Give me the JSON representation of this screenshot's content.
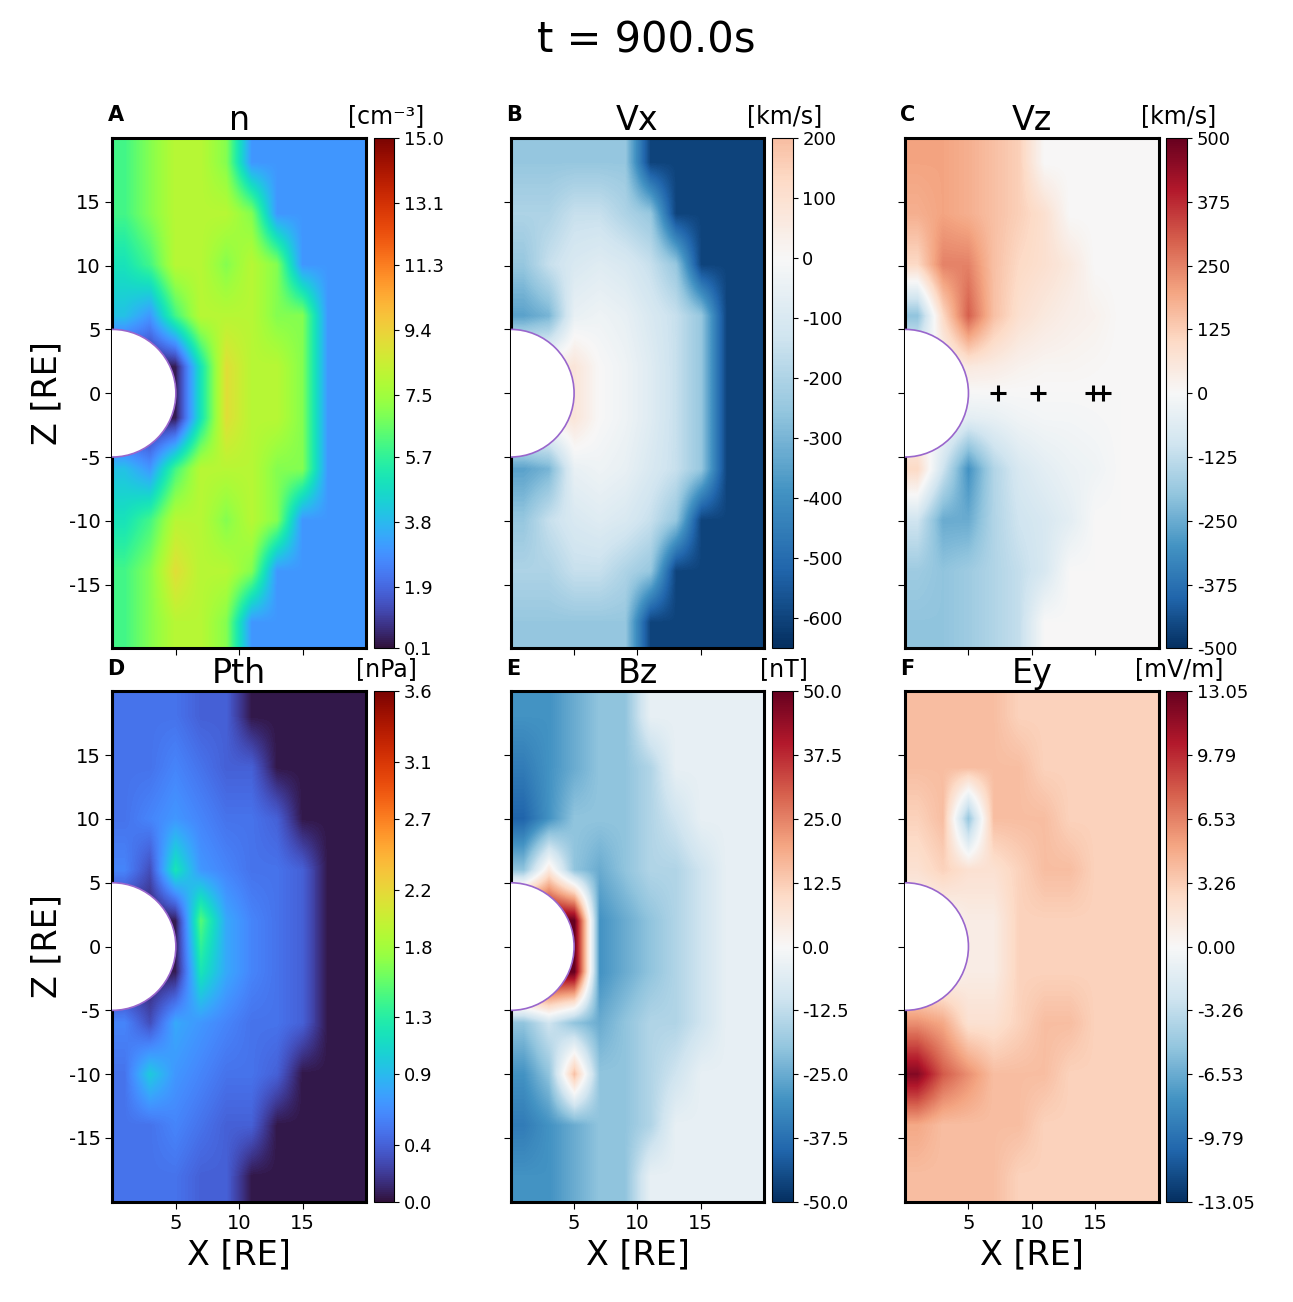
{
  "title": "t = 900.0s",
  "chart_data": [
    {
      "type": "heatmap",
      "panel": "A",
      "title": "n",
      "unit": "[cm⁻³]",
      "color": "turbo",
      "ylabel": "Z [RE]",
      "tick_labels": "y",
      "xlim": [
        0,
        20
      ],
      "ylim": [
        -20,
        20
      ],
      "xticks": [
        5,
        10,
        15
      ],
      "yticks": [
        -15,
        -10,
        -5,
        0,
        5,
        10,
        15
      ],
      "circle": {
        "x": 0,
        "z": 0,
        "r": 5
      },
      "cells": [
        [
          6,
          7,
          8,
          8,
          7,
          3,
          3,
          3,
          3,
          3
        ],
        [
          6,
          7,
          8,
          8,
          8,
          7,
          3,
          3,
          3,
          3
        ],
        [
          5,
          6,
          8,
          8,
          7,
          8,
          7,
          3,
          3,
          3
        ],
        [
          4,
          3,
          6,
          8,
          8,
          8,
          7,
          7,
          3,
          3
        ],
        [
          0.3,
          0.3,
          0.3,
          5,
          9,
          8,
          8,
          7,
          3,
          3
        ],
        [
          0.3,
          0.3,
          0.3,
          5,
          9,
          8,
          8,
          7,
          3,
          3
        ],
        [
          4,
          3,
          6,
          8,
          8,
          8,
          7,
          7,
          3,
          3
        ],
        [
          5,
          6,
          8,
          8,
          7,
          8,
          7,
          3,
          3,
          3
        ],
        [
          6,
          7,
          9,
          8,
          8,
          7,
          3,
          3,
          3,
          3
        ],
        [
          6,
          7,
          8,
          8,
          7,
          3,
          3,
          3,
          3,
          3
        ]
      ],
      "colorbar_lim": [
        0.1,
        15.0
      ],
      "colorbar_ticks": [
        0.1,
        1.9,
        3.8,
        5.7,
        7.5,
        9.4,
        11.3,
        13.1,
        15.0
      ]
    },
    {
      "type": "heatmap",
      "panel": "B",
      "title": "Vx",
      "unit": "[km/s]",
      "color": "RdBu_r",
      "tick_labels": false,
      "xlim": [
        0,
        20
      ],
      "ylim": [
        -20,
        20
      ],
      "xticks": [
        5,
        10,
        15
      ],
      "yticks": [
        -15,
        -10,
        -5,
        0,
        5,
        10,
        15
      ],
      "circle": {
        "x": 0,
        "z": 0,
        "r": 5
      },
      "cells": [
        [
          -250,
          -250,
          -250,
          -250,
          -250,
          -600,
          -600,
          -600,
          -600,
          -600
        ],
        [
          -200,
          -200,
          -150,
          -150,
          -200,
          -250,
          -600,
          -600,
          -600,
          -600
        ],
        [
          -250,
          -150,
          -100,
          -80,
          -100,
          -150,
          -250,
          -600,
          -600,
          -600
        ],
        [
          -350,
          -300,
          -50,
          -30,
          -50,
          -100,
          -150,
          -250,
          -600,
          -600
        ],
        [
          50,
          50,
          80,
          0,
          -30,
          -80,
          -150,
          -250,
          -600,
          -600
        ],
        [
          50,
          50,
          80,
          0,
          -30,
          -80,
          -150,
          -250,
          -600,
          -600
        ],
        [
          -350,
          -300,
          -50,
          -30,
          -50,
          -100,
          -150,
          -250,
          -600,
          -600
        ],
        [
          -250,
          -150,
          -100,
          -80,
          -100,
          -150,
          -250,
          -600,
          -600,
          -600
        ],
        [
          -200,
          -200,
          -150,
          -150,
          -200,
          -250,
          -600,
          -600,
          -600,
          -600
        ],
        [
          -250,
          -250,
          -250,
          -250,
          -250,
          -600,
          -600,
          -600,
          -600,
          -600
        ]
      ],
      "colorbar_lim": [
        -650,
        200
      ],
      "colorbar_ticks": [
        -600,
        -500,
        -400,
        -300,
        -200,
        -100,
        0,
        100,
        200
      ]
    },
    {
      "type": "heatmap",
      "panel": "C",
      "title": "Vz",
      "unit": "[km/s]",
      "color": "RdBu_r",
      "tick_labels": false,
      "xlim": [
        0,
        20
      ],
      "ylim": [
        -20,
        20
      ],
      "xticks": [
        5,
        10,
        15
      ],
      "yticks": [
        -15,
        -10,
        -5,
        0,
        5,
        10,
        15
      ],
      "circle": {
        "x": 0,
        "z": 0,
        "r": 5
      },
      "cells": [
        [
          200,
          200,
          180,
          150,
          120,
          0,
          0,
          0,
          0,
          0
        ],
        [
          180,
          200,
          180,
          150,
          120,
          80,
          0,
          0,
          0,
          0
        ],
        [
          100,
          250,
          250,
          150,
          100,
          80,
          50,
          0,
          0,
          0
        ],
        [
          -200,
          100,
          300,
          150,
          80,
          50,
          30,
          20,
          0,
          0
        ],
        [
          0,
          0,
          50,
          40,
          20,
          10,
          10,
          5,
          0,
          0
        ],
        [
          0,
          0,
          -50,
          -40,
          -20,
          -10,
          -10,
          -5,
          0,
          0
        ],
        [
          100,
          -100,
          -300,
          -150,
          -80,
          -50,
          -30,
          -20,
          0,
          0
        ],
        [
          -100,
          -250,
          -250,
          -150,
          -100,
          -80,
          -50,
          0,
          0,
          0
        ],
        [
          -180,
          -200,
          -180,
          -150,
          -120,
          -80,
          0,
          0,
          0,
          0
        ],
        [
          -200,
          -200,
          -180,
          -150,
          -120,
          0,
          0,
          0,
          0,
          0
        ]
      ],
      "points": {
        "x": [
          7.3,
          10.5,
          14.8,
          15.6
        ],
        "z": [
          0,
          0,
          0,
          0
        ],
        "marker": "+",
        "color": "#000000"
      },
      "colorbar_lim": [
        -500,
        500
      ],
      "colorbar_ticks": [
        -500,
        -375,
        -250,
        -125,
        0,
        125,
        250,
        375,
        500
      ]
    },
    {
      "type": "heatmap",
      "panel": "D",
      "title": "Pth",
      "unit": "[nPa]",
      "color": "turbo",
      "xlabel": "X [RE]",
      "ylabel": "Z [RE]",
      "xlim": [
        0,
        20
      ],
      "ylim": [
        -20,
        20
      ],
      "xticks": [
        5,
        10,
        15
      ],
      "yticks": [
        -15,
        -10,
        -5,
        0,
        5,
        10,
        15
      ],
      "circle": {
        "x": 0,
        "z": 0,
        "r": 5
      },
      "cells": [
        [
          0.5,
          0.5,
          0.5,
          0.4,
          0.4,
          0.03,
          0.03,
          0.03,
          0.03,
          0.03
        ],
        [
          0.5,
          0.5,
          0.6,
          0.5,
          0.4,
          0.4,
          0.03,
          0.03,
          0.03,
          0.03
        ],
        [
          0.5,
          0.6,
          0.7,
          0.6,
          0.5,
          0.5,
          0.4,
          0.03,
          0.03,
          0.03
        ],
        [
          0.6,
          0.3,
          1.2,
          0.7,
          0.6,
          0.5,
          0.5,
          0.4,
          0.03,
          0.03
        ],
        [
          0.05,
          0.05,
          0.05,
          1.5,
          0.8,
          0.6,
          0.5,
          0.4,
          0.03,
          0.03
        ],
        [
          0.05,
          0.05,
          0.05,
          1.2,
          0.8,
          0.6,
          0.5,
          0.4,
          0.03,
          0.03
        ],
        [
          0.6,
          0.3,
          0.8,
          0.7,
          0.6,
          0.5,
          0.5,
          0.4,
          0.03,
          0.03
        ],
        [
          0.5,
          1.0,
          0.7,
          0.6,
          0.5,
          0.5,
          0.4,
          0.03,
          0.03,
          0.03
        ],
        [
          0.5,
          0.5,
          0.6,
          0.5,
          0.4,
          0.4,
          0.03,
          0.03,
          0.03,
          0.03
        ],
        [
          0.5,
          0.5,
          0.5,
          0.4,
          0.4,
          0.03,
          0.03,
          0.03,
          0.03,
          0.03
        ]
      ],
      "colorbar_lim": [
        0.0,
        3.6
      ],
      "colorbar_ticks": [
        0.0,
        0.4,
        0.9,
        1.3,
        1.8,
        2.2,
        2.7,
        3.1,
        3.6
      ]
    },
    {
      "type": "heatmap",
      "panel": "E",
      "title": "Bz",
      "unit": "[nT]",
      "color": "RdBu_r",
      "xlabel": "X [RE]",
      "tick_labels": "x",
      "xlim": [
        0,
        20
      ],
      "ylim": [
        -20,
        20
      ],
      "xticks": [
        5,
        10,
        15
      ],
      "yticks": [
        -15,
        -10,
        -5,
        0,
        5,
        10,
        15
      ],
      "circle": {
        "x": 0,
        "z": 0,
        "r": 5
      },
      "cells": [
        [
          -30,
          -30,
          -25,
          -20,
          -20,
          -4,
          -4,
          -4,
          -4,
          -4
        ],
        [
          -35,
          -30,
          -25,
          -20,
          -20,
          -15,
          -4,
          -4,
          -4,
          -4
        ],
        [
          -40,
          -30,
          -20,
          -20,
          -20,
          -15,
          -10,
          -4,
          -4,
          -4
        ],
        [
          -20,
          5,
          -20,
          -25,
          -20,
          -15,
          -15,
          -10,
          -4,
          -4
        ],
        [
          50,
          50,
          50,
          -30,
          -25,
          -20,
          -15,
          -10,
          -4,
          -4
        ],
        [
          50,
          50,
          50,
          -30,
          -25,
          -20,
          -15,
          -10,
          -4,
          -4
        ],
        [
          -20,
          -10,
          -20,
          -25,
          -20,
          -15,
          -15,
          -10,
          -4,
          -4
        ],
        [
          -30,
          -20,
          15,
          -20,
          -20,
          -15,
          -10,
          -4,
          -4,
          -4
        ],
        [
          -35,
          -30,
          -25,
          -20,
          -20,
          -15,
          -4,
          -4,
          -4,
          -4
        ],
        [
          -30,
          -30,
          -25,
          -20,
          -20,
          -4,
          -4,
          -4,
          -4,
          -4
        ]
      ],
      "colorbar_lim": [
        -50,
        50
      ],
      "colorbar_ticks": [
        -50.0,
        -37.5,
        -25.0,
        -12.5,
        0.0,
        12.5,
        25.0,
        37.5,
        50.0
      ]
    },
    {
      "type": "heatmap",
      "panel": "F",
      "title": "Ey",
      "unit": "[mV/m]",
      "color": "RdBu_r",
      "xlabel": "X [RE]",
      "tick_labels": "x",
      "xlim": [
        0,
        20
      ],
      "ylim": [
        -20,
        20
      ],
      "xticks": [
        5,
        10,
        15
      ],
      "yticks": [
        -15,
        -10,
        -5,
        0,
        5,
        10,
        15
      ],
      "circle": {
        "x": 0,
        "z": 0,
        "r": 5
      },
      "cells": [
        [
          4,
          4,
          4,
          4,
          3,
          3,
          3,
          3,
          3,
          3
        ],
        [
          4,
          4,
          4,
          4,
          4,
          3,
          3,
          3,
          3,
          3
        ],
        [
          3,
          4,
          -5,
          4,
          4,
          4,
          3,
          3,
          3,
          3
        ],
        [
          2,
          3,
          2,
          2,
          3,
          4,
          4,
          3,
          3,
          3
        ],
        [
          0,
          0,
          1,
          1,
          3,
          3,
          3,
          3,
          3,
          3
        ],
        [
          0,
          0,
          1,
          1,
          3,
          3,
          3,
          3,
          3,
          3
        ],
        [
          6,
          5,
          2,
          2,
          3,
          4,
          4,
          3,
          3,
          3
        ],
        [
          12,
          8,
          6,
          4,
          4,
          4,
          3,
          3,
          3,
          3
        ],
        [
          5,
          4,
          4,
          4,
          4,
          3,
          3,
          3,
          3,
          3
        ],
        [
          4,
          4,
          4,
          4,
          3,
          3,
          3,
          3,
          3,
          3
        ]
      ],
      "colorbar_lim": [
        -13.05,
        13.05
      ],
      "colorbar_ticks": [
        -13.05,
        -9.79,
        -6.53,
        -3.26,
        {
          "value": 0,
          "label": "0.00"
        },
        3.26,
        6.53,
        9.79,
        13.05
      ]
    }
  ]
}
